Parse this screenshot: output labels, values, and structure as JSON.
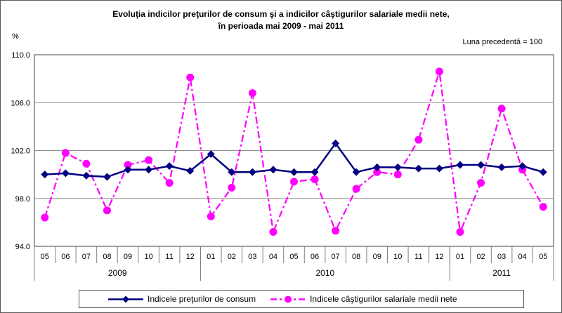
{
  "header": {
    "title_line1": "Evoluţia indicilor preţurilor de consum şi a indicilor câştigurilor salariale medii nete,",
    "title_line2": "în perioada mai 2009 - mai 2011",
    "note": "Luna precedentă = 100"
  },
  "chart_data": {
    "type": "line",
    "title": "Evoluţia indicilor preţurilor de consum şi a indicilor câştigurilor salariale medii nete, în perioada mai 2009 - mai 2011",
    "note": "Luna precedentă = 100",
    "ylabel": "%",
    "xlabel": "",
    "ylim": [
      94,
      110
    ],
    "grid": true,
    "legend_position": "bottom",
    "yticks": [
      {
        "label": "110.0",
        "value": 110
      },
      {
        "label": "106.0",
        "value": 106
      },
      {
        "label": "102.0",
        "value": 102
      },
      {
        "label": "98.0",
        "value": 98
      },
      {
        "label": "94.0",
        "value": 94
      }
    ],
    "categories": [
      "05",
      "06",
      "07",
      "08",
      "09",
      "10",
      "11",
      "12",
      "01",
      "02",
      "03",
      "04",
      "05",
      "06",
      "07",
      "08",
      "09",
      "10",
      "11",
      "12",
      "01",
      "02",
      "03",
      "04",
      "05"
    ],
    "year_groups": [
      {
        "label": "2009",
        "span": 8
      },
      {
        "label": "2010",
        "span": 12
      },
      {
        "label": "2011",
        "span": 5
      }
    ],
    "series": [
      {
        "name": "Indicele preţurilor de consum",
        "color": "#000080",
        "marker": "diamond",
        "line_style": "solid",
        "values": [
          100.0,
          100.1,
          99.9,
          99.8,
          100.4,
          100.4,
          100.7,
          100.3,
          101.7,
          100.2,
          100.2,
          100.4,
          100.2,
          100.2,
          102.6,
          100.2,
          100.6,
          100.6,
          100.5,
          100.5,
          100.8,
          100.8,
          100.6,
          100.7,
          100.2
        ]
      },
      {
        "name": "Indicele câştigurilor salariale medii nete",
        "color": "#FF00FF",
        "marker": "circle",
        "line_style": "dash-dot",
        "values": [
          96.4,
          101.8,
          100.9,
          97.0,
          100.8,
          101.2,
          99.3,
          108.1,
          96.5,
          98.9,
          106.8,
          95.2,
          99.4,
          99.6,
          95.3,
          98.8,
          100.2,
          100.0,
          102.9,
          108.6,
          95.2,
          99.3,
          105.5,
          100.4,
          97.3
        ]
      }
    ]
  }
}
